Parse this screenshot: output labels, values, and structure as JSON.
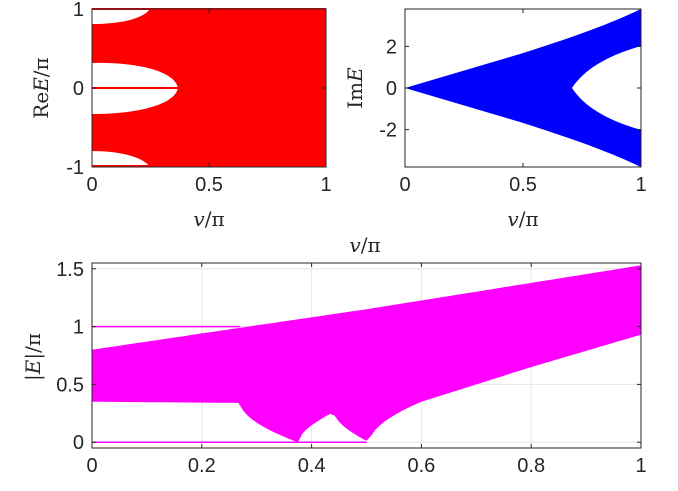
{
  "chart_data": [
    {
      "type": "area",
      "panel": "top-left",
      "xlabel_math": {
        "var": "v",
        "rest": "/π"
      },
      "ylabel_math": {
        "prefix": "Re",
        "var": "E",
        "rest": "/π"
      },
      "xlim": [
        0,
        1
      ],
      "ylim": [
        -1,
        1
      ],
      "xticks": [
        "0",
        "0.5",
        "1"
      ],
      "yticks": [
        "-1",
        "0",
        "1"
      ],
      "xtick_values": [
        0,
        0.5,
        1
      ],
      "ytick_values": [
        -1,
        0,
        1
      ],
      "color": "#ff0000",
      "grid": false,
      "description_regions": {
        "center_hole_tip_x": 0.36,
        "center_hole_halfwidth_at_x0": 0.35,
        "outer_band_inner_edge_at_x0": 0.8,
        "outer_hole_tip_x": 0.26
      }
    },
    {
      "type": "area",
      "panel": "top-right",
      "xlabel_math": {
        "var": "v",
        "rest": "/π"
      },
      "ylabel_math": {
        "prefix": "Im",
        "var": "E",
        "rest": ""
      },
      "xlim": [
        0,
        1
      ],
      "ylim": [
        -3.8,
        3.8
      ],
      "xticks": [
        "0",
        "0.5",
        "1"
      ],
      "yticks": [
        "-2",
        "0",
        "2"
      ],
      "xtick_values": [
        0,
        0.5,
        1
      ],
      "ytick_values": [
        -2,
        0,
        2
      ],
      "color": "#0000ff",
      "grid": false,
      "envelope_at_x1": 3.85,
      "inner_hole_tip_x": 0.72,
      "inner_hole_halfwidth_at_x1": 1.9
    },
    {
      "type": "area",
      "panel": "bottom",
      "title_math": {
        "var": "v",
        "rest": "/π"
      },
      "ylabel_math": {
        "prefix": "|",
        "var": "E",
        "rest": "|/π"
      },
      "xlim": [
        0,
        1
      ],
      "ylim": [
        -0.05,
        1.55
      ],
      "xticks": [
        "0",
        "0.2",
        "0.4",
        "0.6",
        "0.8",
        "1"
      ],
      "yticks": [
        "0",
        "0.5",
        "1",
        "1.5"
      ],
      "xtick_values": [
        0,
        0.2,
        0.4,
        0.6,
        0.8,
        1
      ],
      "ytick_values": [
        0,
        0.5,
        1,
        1.5
      ],
      "color": "#ff00ff",
      "grid": true,
      "lines_at": [
        0,
        1
      ],
      "top_edge": {
        "x": [
          0,
          0.27,
          0.5,
          1
        ],
        "y": [
          0.8,
          0.99,
          1.15,
          1.53
        ]
      },
      "bottom_edge": {
        "x": [
          0,
          0.27,
          0.375,
          0.44,
          0.505,
          0.6,
          0.8,
          1
        ],
        "y": [
          0.35,
          0.34,
          0.0,
          0.26,
          0.0,
          0.35,
          0.65,
          0.93
        ]
      }
    }
  ]
}
